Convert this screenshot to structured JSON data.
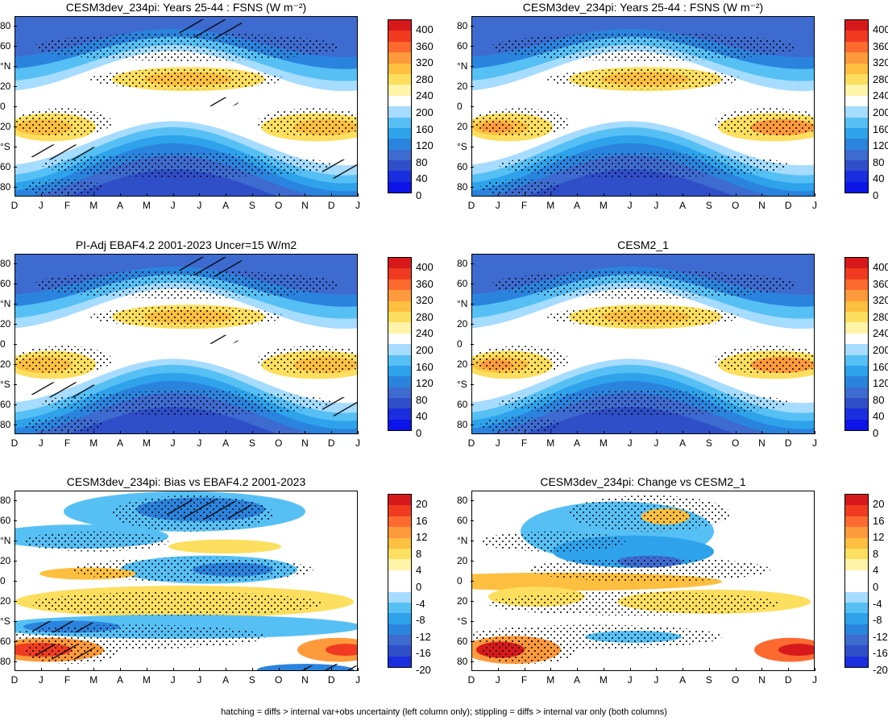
{
  "footer": "hatching = diffs > internal var+obs uncertainty (left column only); stippling = diffs > internal var only (both columns)",
  "chart_data": [
    {
      "type": "heatmap",
      "title": "CESM3dev_234pi: Years 25-44 : FSNS (W m⁻²)",
      "xticks": [
        "D",
        "J",
        "F",
        "M",
        "A",
        "M",
        "J",
        "J",
        "A",
        "S",
        "O",
        "N",
        "D",
        "J"
      ],
      "yticks": [
        "80",
        "60",
        "°N",
        "20",
        "0",
        "20",
        "°S",
        "60",
        "80"
      ],
      "colorbar": {
        "labels": [
          "400",
          "360",
          "320",
          "280",
          "240",
          "200",
          "160",
          "120",
          "80",
          "40",
          "0"
        ],
        "colors": [
          "#d7191c",
          "#f03b20",
          "#fd6a2f",
          "#fd9a3b",
          "#fdbf3f",
          "#fddf5f",
          "#fff4a8",
          "#ffffff",
          "#a6dcff",
          "#56c0f5",
          "#2ea3ec",
          "#2a84de",
          "#3d6bd0",
          "#2f4fc9",
          "#1a2ee0",
          "#0c14e8"
        ]
      },
      "ylim": [
        -90,
        90
      ],
      "hatching": true
    },
    {
      "type": "heatmap",
      "title": "CESM3dev_234pi: Years 25-44 : FSNS (W m⁻²)",
      "xticks": [
        "D",
        "J",
        "F",
        "M",
        "A",
        "M",
        "J",
        "J",
        "A",
        "S",
        "O",
        "N",
        "D",
        "J"
      ],
      "yticks": [
        "80",
        "60",
        "°N",
        "20",
        "0",
        "20",
        "°S",
        "60",
        "80"
      ],
      "colorbar": {
        "labels": [
          "400",
          "360",
          "320",
          "280",
          "240",
          "200",
          "160",
          "120",
          "80",
          "40",
          "0"
        ],
        "colors": [
          "#d7191c",
          "#f03b20",
          "#fd6a2f",
          "#fd9a3b",
          "#fdbf3f",
          "#fddf5f",
          "#fff4a8",
          "#ffffff",
          "#a6dcff",
          "#56c0f5",
          "#2ea3ec",
          "#2a84de",
          "#3d6bd0",
          "#2f4fc9",
          "#1a2ee0",
          "#0c14e8"
        ]
      },
      "ylim": [
        -90,
        90
      ],
      "hatching": false
    },
    {
      "type": "heatmap",
      "title": "PI-Adj EBAF4.2 2001-2023 Uncer=15 W/m2",
      "xticks": [
        "D",
        "J",
        "F",
        "M",
        "A",
        "M",
        "J",
        "J",
        "A",
        "S",
        "O",
        "N",
        "D",
        "J"
      ],
      "yticks": [
        "80",
        "60",
        "°N",
        "20",
        "0",
        "20",
        "°S",
        "60",
        "80"
      ],
      "colorbar": {
        "labels": [
          "400",
          "360",
          "320",
          "280",
          "240",
          "200",
          "160",
          "120",
          "80",
          "40",
          "0"
        ],
        "colors": [
          "#d7191c",
          "#f03b20",
          "#fd6a2f",
          "#fd9a3b",
          "#fdbf3f",
          "#fddf5f",
          "#fff4a8",
          "#ffffff",
          "#a6dcff",
          "#56c0f5",
          "#2ea3ec",
          "#2a84de",
          "#3d6bd0",
          "#2f4fc9",
          "#1a2ee0",
          "#0c14e8"
        ]
      },
      "ylim": [
        -90,
        90
      ],
      "hatching": true
    },
    {
      "type": "heatmap",
      "title": "CESM2_1",
      "xticks": [
        "D",
        "J",
        "F",
        "M",
        "A",
        "M",
        "J",
        "J",
        "A",
        "S",
        "O",
        "N",
        "D",
        "J"
      ],
      "yticks": [
        "80",
        "60",
        "°N",
        "20",
        "0",
        "20",
        "°S",
        "60",
        "80"
      ],
      "colorbar": {
        "labels": [
          "400",
          "360",
          "320",
          "280",
          "240",
          "200",
          "160",
          "120",
          "80",
          "40",
          "0"
        ],
        "colors": [
          "#d7191c",
          "#f03b20",
          "#fd6a2f",
          "#fd9a3b",
          "#fdbf3f",
          "#fddf5f",
          "#fff4a8",
          "#ffffff",
          "#a6dcff",
          "#56c0f5",
          "#2ea3ec",
          "#2a84de",
          "#3d6bd0",
          "#2f4fc9",
          "#1a2ee0",
          "#0c14e8"
        ]
      },
      "ylim": [
        -90,
        90
      ],
      "hatching": false
    },
    {
      "type": "heatmap",
      "title": "CESM3dev_234pi: Bias vs EBAF4.2 2001-2023",
      "xticks": [
        "D",
        "J",
        "F",
        "M",
        "A",
        "M",
        "J",
        "J",
        "A",
        "S",
        "O",
        "N",
        "D",
        "J"
      ],
      "yticks": [
        "80",
        "60",
        "°N",
        "20",
        "0",
        "20",
        "°S",
        "60",
        "80"
      ],
      "colorbar": {
        "labels": [
          "20",
          "16",
          "12",
          "8",
          "4",
          "0",
          "-4",
          "-8",
          "-12",
          "-16",
          "-20"
        ],
        "colors": [
          "#d7191c",
          "#f03b20",
          "#fd6a2f",
          "#fd9a3b",
          "#fdbf3f",
          "#fddf5f",
          "#fff4a8",
          "#ffffff",
          "#ffffff",
          "#a6dcff",
          "#56c0f5",
          "#2ea3ec",
          "#2a84de",
          "#3d6bd0",
          "#2f4fc9",
          "#1a2ee0"
        ]
      },
      "ylim": [
        -90,
        90
      ],
      "hatching": true
    },
    {
      "type": "heatmap",
      "title": "CESM3dev_234pi: Change vs CESM2_1",
      "xticks": [
        "D",
        "J",
        "F",
        "M",
        "A",
        "M",
        "J",
        "J",
        "A",
        "S",
        "O",
        "N",
        "D",
        "J"
      ],
      "yticks": [
        "80",
        "60",
        "°N",
        "20",
        "0",
        "20",
        "°S",
        "60",
        "80"
      ],
      "colorbar": {
        "labels": [
          "20",
          "16",
          "12",
          "8",
          "4",
          "0",
          "-4",
          "-8",
          "-12",
          "-16",
          "-20"
        ],
        "colors": [
          "#d7191c",
          "#f03b20",
          "#fd6a2f",
          "#fd9a3b",
          "#fdbf3f",
          "#fddf5f",
          "#fff4a8",
          "#ffffff",
          "#ffffff",
          "#a6dcff",
          "#56c0f5",
          "#2ea3ec",
          "#2a84de",
          "#3d6bd0",
          "#2f4fc9",
          "#1a2ee0"
        ]
      },
      "ylim": [
        -90,
        90
      ],
      "hatching": false
    }
  ]
}
